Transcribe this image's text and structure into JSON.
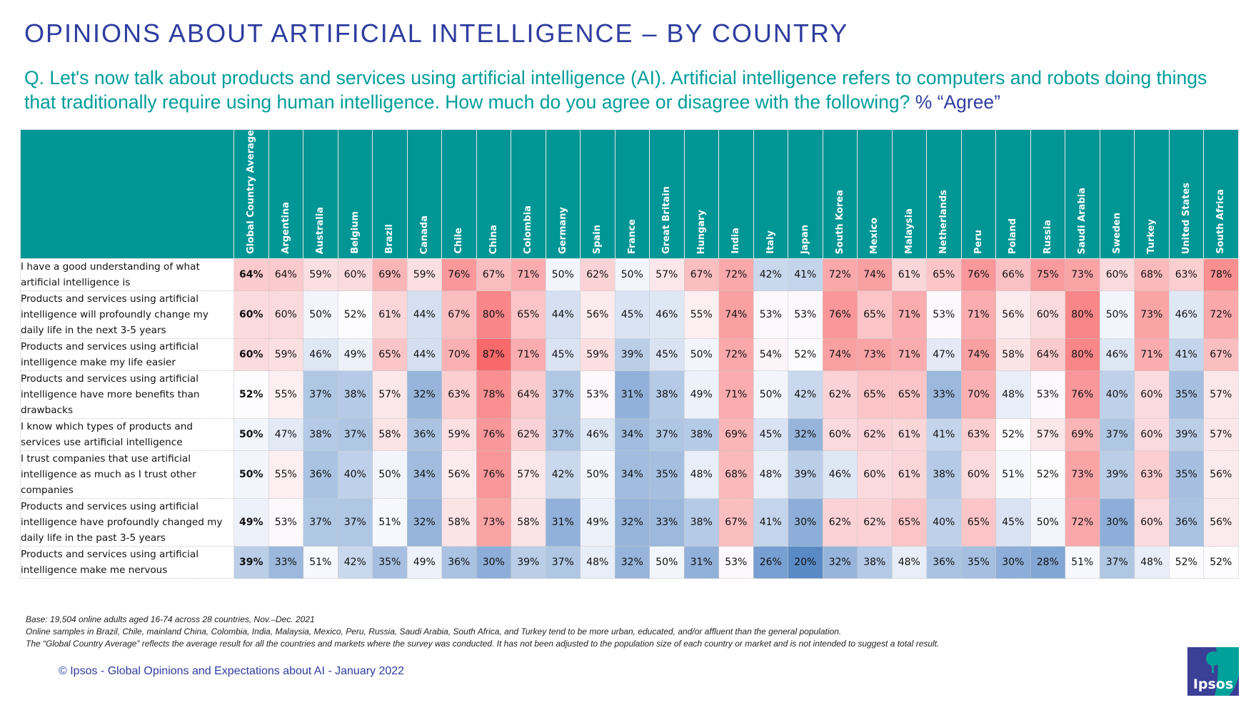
{
  "title": "OPINIONS ABOUT ARTIFICIAL INTELLIGENCE – BY COUNTRY",
  "question": {
    "text": "Q. Let's now talk about products and services using artificial intelligence (AI). Artificial intelligence refers to computers and robots doing things that traditionally require using human intelligence. How much do you agree or disagree with the following?",
    "measure": "% “Agree”"
  },
  "colors": {
    "title": "#2E3D9F",
    "question": "#009D9A",
    "header_bg": "#009695",
    "scale_low": "#5A8AC6",
    "scale_mid": "#FCFCFF",
    "scale_high": "#F8696B"
  },
  "chart_data": {
    "type": "heatmap",
    "title": "OPINIONS ABOUT ARTIFICIAL INTELLIGENCE – BY COUNTRY",
    "unit": "%",
    "columns": [
      "Global Country Average",
      "Argentina",
      "Australia",
      "Belgium",
      "Brazil",
      "Canada",
      "Chile",
      "China",
      "Colombia",
      "Germany",
      "Spain",
      "France",
      "Great Britain",
      "Hungary",
      "India",
      "Italy",
      "Japan",
      "South Korea",
      "Mexico",
      "Malaysia",
      "Netherlands",
      "Peru",
      "Poland",
      "Russia",
      "Saudi Arabia",
      "Sweden",
      "Turkey",
      "United States",
      "South Africa"
    ],
    "rows": [
      {
        "label": "I have a good understanding of what artificial intelligence is",
        "values": [
          64,
          64,
          59,
          60,
          69,
          59,
          76,
          67,
          71,
          50,
          62,
          50,
          57,
          67,
          72,
          42,
          41,
          72,
          74,
          61,
          65,
          76,
          66,
          75,
          73,
          60,
          68,
          63,
          78
        ]
      },
      {
        "label": "Products and services using artificial intelligence will profoundly change my daily life in the next 3-5 years",
        "values": [
          60,
          60,
          50,
          52,
          61,
          44,
          67,
          80,
          65,
          44,
          56,
          45,
          46,
          55,
          74,
          53,
          53,
          76,
          65,
          71,
          53,
          71,
          56,
          60,
          80,
          50,
          73,
          46,
          72
        ]
      },
      {
        "label": "Products and services using artificial intelligence make my life easier",
        "values": [
          60,
          59,
          46,
          49,
          65,
          44,
          70,
          87,
          71,
          45,
          59,
          39,
          45,
          50,
          72,
          54,
          52,
          74,
          73,
          71,
          47,
          74,
          58,
          64,
          80,
          46,
          71,
          41,
          67
        ]
      },
      {
        "label": "Products and services using artificial intelligence have more benefits than drawbacks",
        "values": [
          52,
          55,
          37,
          38,
          57,
          32,
          63,
          78,
          64,
          37,
          53,
          31,
          38,
          49,
          71,
          50,
          42,
          62,
          65,
          65,
          33,
          70,
          48,
          53,
          76,
          40,
          60,
          35,
          57
        ]
      },
      {
        "label": "I know which types of products and services use artificial intelligence",
        "values": [
          50,
          47,
          38,
          37,
          58,
          36,
          59,
          76,
          62,
          37,
          46,
          34,
          37,
          38,
          69,
          45,
          32,
          60,
          62,
          61,
          41,
          63,
          52,
          57,
          69,
          37,
          60,
          39,
          57
        ]
      },
      {
        "label": "I trust companies that use artificial intelligence as much as I trust other companies",
        "values": [
          50,
          55,
          36,
          40,
          50,
          34,
          56,
          76,
          57,
          42,
          50,
          34,
          35,
          48,
          68,
          48,
          39,
          46,
          60,
          61,
          38,
          60,
          51,
          52,
          73,
          39,
          63,
          35,
          56
        ]
      },
      {
        "label": "Products and services using artificial intelligence have profoundly changed my daily life in the past 3-5 years",
        "values": [
          49,
          53,
          37,
          37,
          51,
          32,
          58,
          73,
          58,
          31,
          49,
          32,
          33,
          38,
          67,
          41,
          30,
          62,
          62,
          65,
          40,
          65,
          45,
          50,
          72,
          30,
          60,
          36,
          56
        ]
      },
      {
        "label": "Products and services using artificial intelligence make me nervous",
        "values": [
          39,
          33,
          51,
          42,
          35,
          49,
          36,
          30,
          39,
          37,
          48,
          32,
          50,
          31,
          53,
          26,
          20,
          32,
          38,
          48,
          36,
          35,
          30,
          28,
          51,
          37,
          48,
          52,
          52
        ]
      }
    ],
    "color_scale": {
      "min": 20,
      "mid": 52,
      "max": 87
    }
  },
  "footnotes": [
    "Base: 19,504 online adults aged 16-74 across 28 countries, Nov.–Dec. 2021",
    "Online samples in Brazil, Chile, mainland China, Colombia, India, Malaysia, Mexico, Peru, Russia, Saudi Arabia, South Africa, and Turkey tend to be more urban, educated, and/or affluent than the general population.",
    "The “Global  Country Average” reflects the average result for all the countries and markets where the survey was conducted. It has not been adjusted to the population size of each country or market and is not intended to suggest a total result."
  ],
  "copyright": "© Ipsos - Global Opinions and Expectations about AI - January 2022",
  "logo": {
    "text": "Ipsos",
    "icon": "ipsos-logo-icon"
  }
}
